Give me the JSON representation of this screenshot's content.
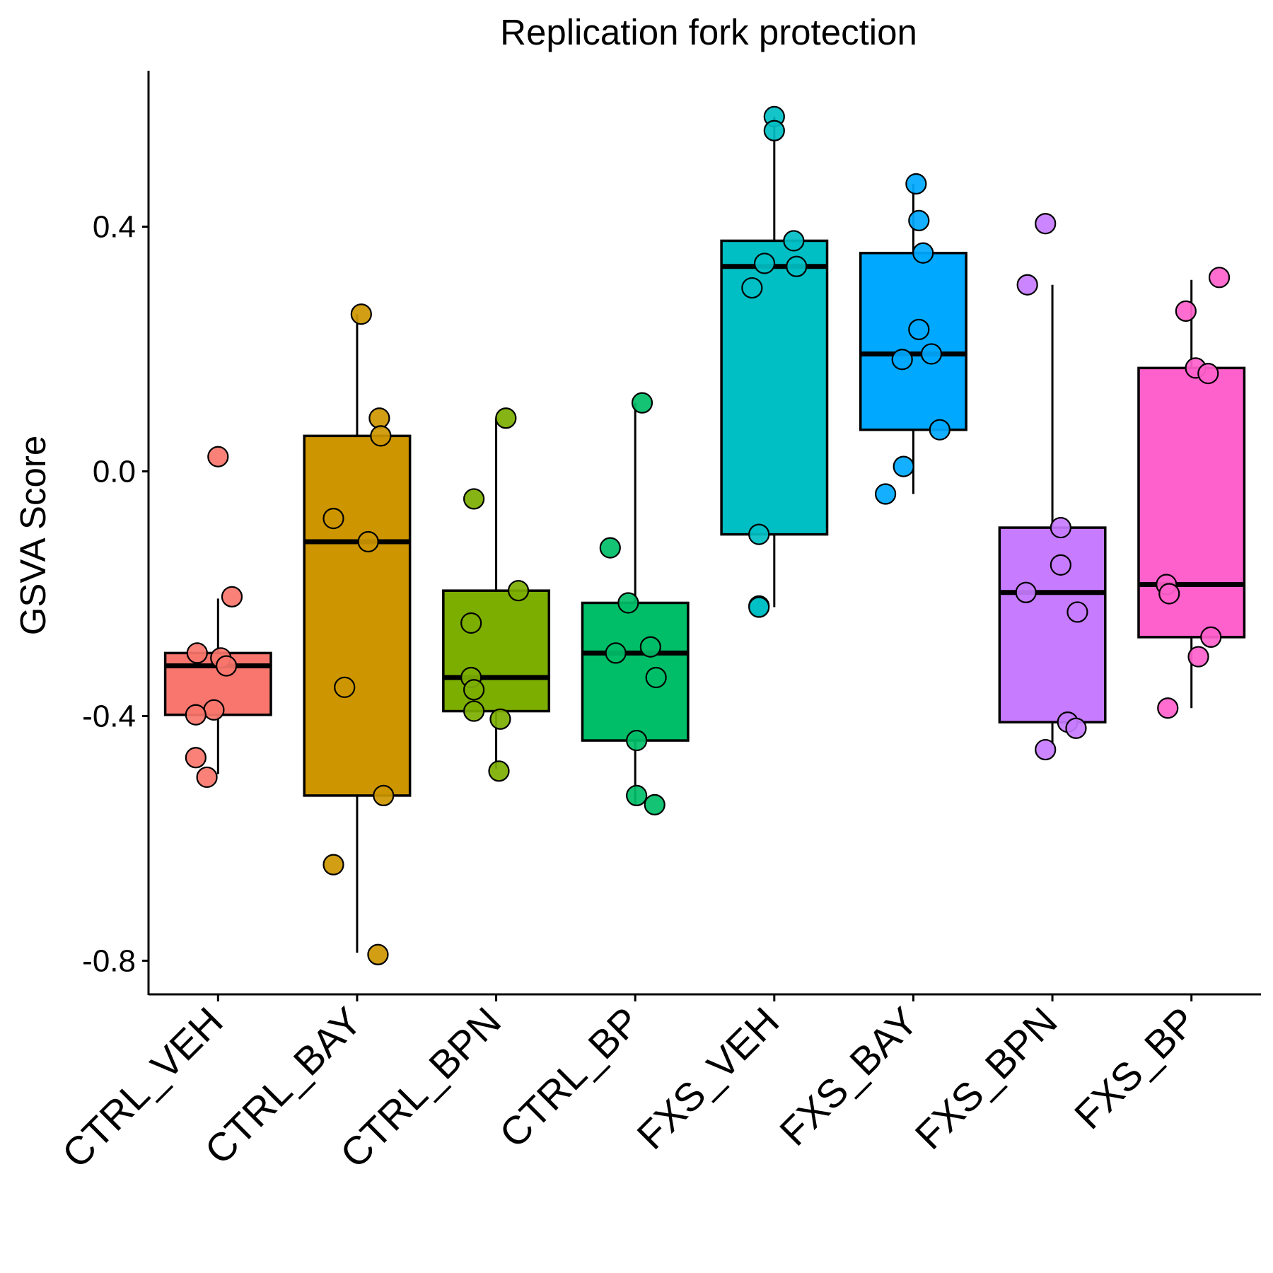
{
  "chart_data": {
    "type": "box",
    "title": "Replication fork protection",
    "ylabel": "GSVA Score",
    "xlabel": "",
    "ylim": [
      -0.855,
      0.655
    ],
    "yticks": [
      {
        "value": 0.4,
        "label": "0.4"
      },
      {
        "value": 0.0,
        "label": "0.0"
      },
      {
        "value": -0.4,
        "label": "-0.4"
      },
      {
        "value": -0.8,
        "label": "-0.8"
      }
    ],
    "grid": false,
    "legend": "none",
    "categories": [
      "CTRL_VEH",
      "CTRL_BAY",
      "CTRL_BPN",
      "CTRL_BP",
      "FXS_VEH",
      "FXS_BAY",
      "FXS_BPN",
      "FXS_BP"
    ],
    "colors": [
      "#F8766D",
      "#CD9600",
      "#7CAE00",
      "#00BE67",
      "#00BFC4",
      "#00A9FF",
      "#C77CFF",
      "#FF61CC"
    ],
    "boxes": [
      {
        "whisker_low": -0.495,
        "q1": -0.398,
        "median": -0.318,
        "q3": -0.297,
        "whisker_high": -0.208
      },
      {
        "whisker_low": -0.787,
        "q1": -0.53,
        "median": -0.115,
        "q3": 0.058,
        "whisker_high": 0.257
      },
      {
        "whisker_low": -0.486,
        "q1": -0.392,
        "median": -0.337,
        "q3": -0.195,
        "whisker_high": 0.087
      },
      {
        "whisker_low": -0.545,
        "q1": -0.44,
        "median": -0.297,
        "q3": -0.215,
        "whisker_high": 0.112
      },
      {
        "whisker_low": -0.222,
        "q1": -0.103,
        "median": 0.335,
        "q3": 0.377,
        "whisker_high": 0.58
      },
      {
        "whisker_low": -0.037,
        "q1": 0.068,
        "median": 0.192,
        "q3": 0.357,
        "whisker_high": 0.47
      },
      {
        "whisker_low": -0.447,
        "q1": -0.41,
        "median": -0.198,
        "q3": -0.092,
        "whisker_high": 0.305
      },
      {
        "whisker_low": -0.387,
        "q1": -0.271,
        "median": -0.185,
        "q3": 0.169,
        "whisker_high": 0.313
      }
    ],
    "points": [
      [
        {
          "x": 0.0,
          "y": 0.024
        },
        {
          "x": 0.1,
          "y": -0.205
        },
        {
          "x": -0.15,
          "y": -0.297
        },
        {
          "x": 0.02,
          "y": -0.305
        },
        {
          "x": 0.06,
          "y": -0.318
        },
        {
          "x": -0.03,
          "y": -0.39
        },
        {
          "x": -0.16,
          "y": -0.398
        },
        {
          "x": -0.16,
          "y": -0.468
        },
        {
          "x": -0.08,
          "y": -0.5
        }
      ],
      [
        {
          "x": 0.03,
          "y": 0.257
        },
        {
          "x": 0.16,
          "y": 0.087
        },
        {
          "x": 0.17,
          "y": 0.058
        },
        {
          "x": -0.17,
          "y": -0.077
        },
        {
          "x": 0.08,
          "y": -0.115
        },
        {
          "x": -0.09,
          "y": -0.353
        },
        {
          "x": 0.19,
          "y": -0.53
        },
        {
          "x": -0.17,
          "y": -0.643
        },
        {
          "x": 0.15,
          "y": -0.79
        }
      ],
      [
        {
          "x": 0.07,
          "y": 0.087
        },
        {
          "x": -0.16,
          "y": -0.045
        },
        {
          "x": 0.16,
          "y": -0.195
        },
        {
          "x": -0.18,
          "y": -0.248
        },
        {
          "x": -0.18,
          "y": -0.337
        },
        {
          "x": -0.16,
          "y": -0.357
        },
        {
          "x": -0.16,
          "y": -0.392
        },
        {
          "x": 0.03,
          "y": -0.405
        },
        {
          "x": 0.02,
          "y": -0.49
        }
      ],
      [
        {
          "x": 0.05,
          "y": 0.112
        },
        {
          "x": -0.18,
          "y": -0.125
        },
        {
          "x": -0.05,
          "y": -0.215
        },
        {
          "x": 0.11,
          "y": -0.287
        },
        {
          "x": -0.14,
          "y": -0.297
        },
        {
          "x": 0.15,
          "y": -0.337
        },
        {
          "x": 0.01,
          "y": -0.44
        },
        {
          "x": 0.01,
          "y": -0.53
        },
        {
          "x": 0.14,
          "y": -0.545
        }
      ],
      [
        {
          "x": 0.0,
          "y": 0.58
        },
        {
          "x": 0.0,
          "y": 0.557
        },
        {
          "x": 0.14,
          "y": 0.377
        },
        {
          "x": -0.07,
          "y": 0.34
        },
        {
          "x": 0.16,
          "y": 0.335
        },
        {
          "x": -0.16,
          "y": 0.3
        },
        {
          "x": -0.11,
          "y": -0.103
        },
        {
          "x": -0.11,
          "y": -0.22
        },
        {
          "x": -0.11,
          "y": -0.222
        }
      ],
      [
        {
          "x": 0.02,
          "y": 0.47
        },
        {
          "x": 0.04,
          "y": 0.41
        },
        {
          "x": 0.07,
          "y": 0.357
        },
        {
          "x": 0.04,
          "y": 0.232
        },
        {
          "x": 0.13,
          "y": 0.192
        },
        {
          "x": -0.08,
          "y": 0.183
        },
        {
          "x": 0.19,
          "y": 0.068
        },
        {
          "x": -0.07,
          "y": 0.008
        },
        {
          "x": -0.2,
          "y": -0.037
        }
      ],
      [
        {
          "x": -0.05,
          "y": 0.405
        },
        {
          "x": -0.18,
          "y": 0.305
        },
        {
          "x": 0.06,
          "y": -0.092
        },
        {
          "x": 0.06,
          "y": -0.153
        },
        {
          "x": -0.19,
          "y": -0.198
        },
        {
          "x": 0.18,
          "y": -0.23
        },
        {
          "x": 0.11,
          "y": -0.41
        },
        {
          "x": 0.17,
          "y": -0.42
        },
        {
          "x": -0.05,
          "y": -0.455
        }
      ],
      [
        {
          "x": 0.2,
          "y": 0.317
        },
        {
          "x": -0.04,
          "y": 0.262
        },
        {
          "x": 0.03,
          "y": 0.169
        },
        {
          "x": 0.12,
          "y": 0.16
        },
        {
          "x": -0.18,
          "y": -0.185
        },
        {
          "x": -0.16,
          "y": -0.2
        },
        {
          "x": 0.14,
          "y": -0.271
        },
        {
          "x": 0.05,
          "y": -0.303
        },
        {
          "x": -0.17,
          "y": -0.387
        }
      ]
    ]
  }
}
